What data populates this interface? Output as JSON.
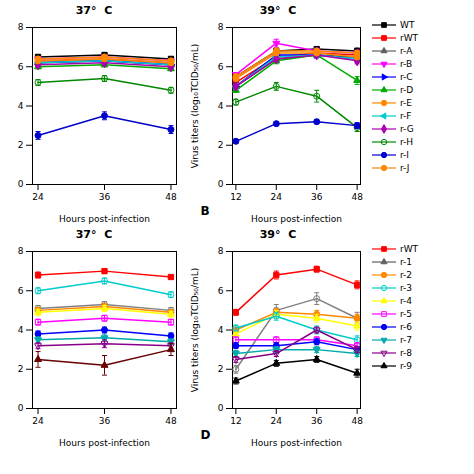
{
  "chart_data": [
    {
      "type": "line",
      "title": "37°  C",
      "x": [
        24,
        36,
        48
      ],
      "xlabel": "Hours post-infection",
      "xlim": [
        23,
        49
      ],
      "xticks": [
        24,
        36,
        48
      ],
      "ylim": [
        0,
        8
      ],
      "yticks": [
        0,
        2,
        4,
        6,
        8
      ],
      "series": [
        {
          "color": "#000000",
          "marker": "square",
          "values": [
            6.5,
            6.6,
            6.4
          ],
          "yerr": [
            0.1,
            0.1,
            0.1
          ]
        },
        {
          "color": "#ff0000",
          "marker": "square",
          "values": [
            6.3,
            6.4,
            6.2
          ],
          "yerr": [
            0.1,
            0.1,
            0.1
          ]
        },
        {
          "color": "#404040",
          "marker": "triangle-up",
          "values": [
            6.2,
            6.3,
            6.1
          ],
          "yerr": [
            0.1,
            0.1,
            0.1
          ]
        },
        {
          "color": "#ff00ff",
          "marker": "triangle-down",
          "values": [
            6.4,
            6.5,
            6.3
          ],
          "yerr": [
            0.1,
            0.1,
            0.1
          ]
        },
        {
          "color": "#0000ff",
          "marker": "triangle-right",
          "values": [
            6.2,
            6.3,
            6.1
          ],
          "yerr": [
            0.1,
            0.1,
            0.1
          ]
        },
        {
          "color": "#00aa00",
          "marker": "triangle-up",
          "values": [
            6.0,
            6.1,
            5.9
          ],
          "yerr": [
            0.1,
            0.1,
            0.1
          ]
        },
        {
          "color": "#ff8800",
          "marker": "circle",
          "values": [
            6.4,
            6.5,
            6.3
          ],
          "yerr": [
            0.1,
            0.1,
            0.1
          ]
        },
        {
          "color": "#00cccc",
          "marker": "triangle-left",
          "values": [
            6.2,
            6.3,
            6.1
          ],
          "yerr": [
            0.1,
            0.1,
            0.1
          ]
        },
        {
          "color": "#aa00aa",
          "marker": "diamond",
          "values": [
            6.1,
            6.2,
            6.0
          ],
          "yerr": [
            0.1,
            0.1,
            0.1
          ]
        },
        {
          "color": "#008800",
          "marker": "circle-open",
          "values": [
            5.2,
            5.4,
            4.8
          ],
          "yerr": [
            0.15,
            0.15,
            0.15
          ]
        },
        {
          "color": "#0000cc",
          "marker": "circle",
          "values": [
            2.5,
            3.5,
            2.8
          ],
          "yerr": [
            0.2,
            0.2,
            0.2
          ]
        },
        {
          "color": "#ff8800",
          "marker": "circle",
          "values": [
            6.3,
            6.4,
            6.2
          ],
          "yerr": [
            0.1,
            0.1,
            0.1
          ]
        }
      ]
    },
    {
      "type": "line",
      "title": "39°  C",
      "annotation": "B",
      "x": [
        12,
        24,
        36,
        48
      ],
      "xlabel": "Hours post-infection",
      "ylabel": "Virus titers (log₁₀TCID₅₀/mL)",
      "xlim": [
        11,
        49
      ],
      "xticks": [
        12,
        24,
        36,
        48
      ],
      "ylim": [
        0,
        8
      ],
      "yticks": [
        0,
        2,
        4,
        6,
        8
      ],
      "series": [
        {
          "color": "#000000",
          "marker": "square",
          "values": [
            5.5,
            6.8,
            6.9,
            6.8
          ],
          "yerr": [
            0.1,
            0.15,
            0.1,
            0.15
          ]
        },
        {
          "color": "#ff0000",
          "marker": "square",
          "values": [
            5.2,
            6.5,
            6.7,
            6.6
          ],
          "yerr": [
            0.1,
            0.15,
            0.1,
            0.15
          ]
        },
        {
          "color": "#404040",
          "marker": "triangle-up",
          "values": [
            5.0,
            6.4,
            6.6,
            6.5
          ],
          "yerr": [
            0.1,
            0.15,
            0.1,
            0.15
          ]
        },
        {
          "color": "#ff00ff",
          "marker": "triangle-down",
          "values": [
            5.6,
            7.2,
            6.8,
            6.7
          ],
          "yerr": [
            0.1,
            0.2,
            0.15,
            0.15
          ]
        },
        {
          "color": "#0000ff",
          "marker": "triangle-right",
          "values": [
            5.0,
            6.6,
            6.6,
            6.4
          ],
          "yerr": [
            0.1,
            0.15,
            0.1,
            0.15
          ]
        },
        {
          "color": "#00aa00",
          "marker": "triangle-up",
          "values": [
            4.8,
            6.3,
            6.6,
            5.3
          ],
          "yerr": [
            0.1,
            0.15,
            0.1,
            0.2
          ]
        },
        {
          "color": "#ff8800",
          "marker": "circle",
          "values": [
            5.5,
            6.8,
            6.8,
            6.7
          ],
          "yerr": [
            0.1,
            0.15,
            0.1,
            0.1
          ]
        },
        {
          "color": "#00cccc",
          "marker": "triangle-left",
          "values": [
            5.0,
            6.5,
            6.6,
            6.4
          ],
          "yerr": [
            0.1,
            0.15,
            0.1,
            0.15
          ]
        },
        {
          "color": "#aa00aa",
          "marker": "diamond",
          "values": [
            5.0,
            6.4,
            6.6,
            6.3
          ],
          "yerr": [
            0.1,
            0.15,
            0.1,
            0.15
          ]
        },
        {
          "color": "#008800",
          "marker": "circle-open",
          "values": [
            4.2,
            5.0,
            4.5,
            2.9
          ],
          "yerr": [
            0.15,
            0.2,
            0.3,
            0.2
          ]
        },
        {
          "color": "#0000cc",
          "marker": "circle",
          "values": [
            2.2,
            3.1,
            3.2,
            3.0
          ],
          "yerr": [
            0.1,
            0.1,
            0.1,
            0.15
          ]
        },
        {
          "color": "#ff8800",
          "marker": "circle",
          "values": [
            5.4,
            6.7,
            6.7,
            6.5
          ],
          "yerr": [
            0.1,
            0.1,
            0.1,
            0.1
          ]
        }
      ]
    },
    {
      "type": "legend",
      "series": [
        {
          "name": "WT",
          "color": "#000000",
          "marker": "square"
        },
        {
          "name": "rWT",
          "color": "#ff0000",
          "marker": "square"
        },
        {
          "name": "r-A",
          "color": "#606060",
          "marker": "triangle-up"
        },
        {
          "name": "r-B",
          "color": "#ff00ff",
          "marker": "triangle-down"
        },
        {
          "name": "r-C",
          "color": "#0000ff",
          "marker": "triangle-right"
        },
        {
          "name": "r-D",
          "color": "#00aa00",
          "marker": "triangle-up"
        },
        {
          "name": "r-E",
          "color": "#ff8800",
          "marker": "circle"
        },
        {
          "name": "r-F",
          "color": "#00cccc",
          "marker": "triangle-left"
        },
        {
          "name": "r-G",
          "color": "#aa00aa",
          "marker": "diamond"
        },
        {
          "name": "r-H",
          "color": "#008800",
          "marker": "circle-open"
        },
        {
          "name": "r-I",
          "color": "#0000cc",
          "marker": "circle"
        },
        {
          "name": "r-J",
          "color": "#ff8800",
          "marker": "circle"
        }
      ]
    },
    {
      "type": "line",
      "title": "37°  C",
      "x": [
        24,
        36,
        48
      ],
      "xlabel": "Hours post-infection",
      "xlim": [
        23,
        49
      ],
      "xticks": [
        24,
        36,
        48
      ],
      "ylim": [
        0,
        8
      ],
      "yticks": [
        0,
        2,
        4,
        6,
        8
      ],
      "series": [
        {
          "color": "#ff0000",
          "marker": "square",
          "values": [
            6.8,
            7.0,
            6.7
          ],
          "yerr": [
            0.15,
            0.1,
            0.1
          ]
        },
        {
          "color": "#00cccc",
          "marker": "circle-open",
          "values": [
            6.0,
            6.5,
            5.8
          ],
          "yerr": [
            0.15,
            0.15,
            0.15
          ]
        },
        {
          "color": "#808080",
          "marker": "circle-open",
          "values": [
            5.1,
            5.3,
            5.0
          ],
          "yerr": [
            0.15,
            0.15,
            0.15
          ]
        },
        {
          "color": "#ff8800",
          "marker": "circle",
          "values": [
            5.0,
            5.2,
            4.9
          ],
          "yerr": [
            0.15,
            0.15,
            0.15
          ]
        },
        {
          "color": "#ffff00",
          "marker": "triangle-up",
          "values": [
            4.9,
            5.1,
            4.8
          ],
          "yerr": [
            0.15,
            0.15,
            0.15
          ]
        },
        {
          "color": "#ff00ff",
          "marker": "square-open",
          "values": [
            4.4,
            4.6,
            4.4
          ],
          "yerr": [
            0.15,
            0.15,
            0.15
          ]
        },
        {
          "color": "#0000ff",
          "marker": "circle",
          "values": [
            3.8,
            4.0,
            3.7
          ],
          "yerr": [
            0.15,
            0.15,
            0.15
          ]
        },
        {
          "color": "#00aaaa",
          "marker": "triangle-down",
          "values": [
            3.5,
            3.6,
            3.4
          ],
          "yerr": [
            0.15,
            0.15,
            0.15
          ]
        },
        {
          "color": "#880088",
          "marker": "triangle-down-open",
          "values": [
            3.2,
            3.3,
            3.2
          ],
          "yerr": [
            0.15,
            0.2,
            0.15
          ]
        },
        {
          "color": "#660000",
          "marker": "triangle-up",
          "values": [
            2.5,
            2.2,
            3.0
          ],
          "yerr": [
            0.4,
            0.5,
            0.3
          ]
        }
      ]
    },
    {
      "type": "line",
      "title": "39°  C",
      "annotation": "D",
      "x": [
        12,
        24,
        36,
        48
      ],
      "xlabel": "Hours post-infection",
      "ylabel": "Virus titers (log₁₀TCID₅₀/mL)",
      "xlim": [
        11,
        49
      ],
      "xticks": [
        12,
        24,
        36,
        48
      ],
      "ylim": [
        0,
        8
      ],
      "yticks": [
        0,
        2,
        4,
        6,
        8
      ],
      "series": [
        {
          "color": "#ff0000",
          "marker": "square",
          "values": [
            4.9,
            6.8,
            7.1,
            6.3
          ],
          "yerr": [
            0.15,
            0.2,
            0.15,
            0.2
          ]
        },
        {
          "color": "#808080",
          "marker": "circle-open",
          "values": [
            2.0,
            5.0,
            5.6,
            4.6
          ],
          "yerr": [
            0.2,
            0.3,
            0.3,
            0.3
          ]
        },
        {
          "color": "#ff8800",
          "marker": "circle",
          "values": [
            4.0,
            4.9,
            4.8,
            4.6
          ],
          "yerr": [
            0.15,
            0.2,
            0.2,
            0.2
          ]
        },
        {
          "color": "#ffff00",
          "marker": "triangle-up",
          "values": [
            3.8,
            4.8,
            4.6,
            4.2
          ],
          "yerr": [
            0.15,
            0.2,
            0.2,
            0.2
          ]
        },
        {
          "color": "#00cccc",
          "marker": "circle-open",
          "values": [
            4.1,
            4.7,
            4.0,
            3.5
          ],
          "yerr": [
            0.15,
            0.2,
            0.2,
            0.2
          ]
        },
        {
          "color": "#ff00ff",
          "marker": "square-open",
          "values": [
            3.5,
            3.5,
            3.5,
            3.2
          ],
          "yerr": [
            0.15,
            0.15,
            0.15,
            0.15
          ]
        },
        {
          "color": "#0000ff",
          "marker": "circle",
          "values": [
            3.2,
            3.2,
            3.4,
            3.0
          ],
          "yerr": [
            0.15,
            0.15,
            0.15,
            0.15
          ]
        },
        {
          "color": "#00aaaa",
          "marker": "triangle-down",
          "values": [
            2.8,
            3.0,
            3.0,
            2.8
          ],
          "yerr": [
            0.15,
            0.15,
            0.15,
            0.15
          ]
        },
        {
          "color": "#880088",
          "marker": "triangle-down-open",
          "values": [
            2.5,
            2.8,
            4.0,
            3.0
          ],
          "yerr": [
            0.15,
            0.15,
            0.15,
            0.15
          ]
        },
        {
          "color": "#000000",
          "marker": "triangle-up",
          "values": [
            1.4,
            2.3,
            2.5,
            1.8
          ],
          "yerr": [
            0.15,
            0.15,
            0.15,
            0.2
          ]
        }
      ]
    },
    {
      "type": "legend",
      "series": [
        {
          "name": "rWT",
          "color": "#ff0000",
          "marker": "square"
        },
        {
          "name": "r-1",
          "color": "#606060",
          "marker": "triangle-up"
        },
        {
          "name": "r-2",
          "color": "#ff8800",
          "marker": "circle"
        },
        {
          "name": "r-3",
          "color": "#00cccc",
          "marker": "circle-open"
        },
        {
          "name": "r-4",
          "color": "#ffff00",
          "marker": "triangle-up"
        },
        {
          "name": "r-5",
          "color": "#ff00ff",
          "marker": "square-open"
        },
        {
          "name": "r-6",
          "color": "#0000ff",
          "marker": "circle"
        },
        {
          "name": "r-7",
          "color": "#00aaaa",
          "marker": "triangle-down"
        },
        {
          "name": "r-8",
          "color": "#880088",
          "marker": "triangle-down-open"
        },
        {
          "name": "r-9",
          "color": "#000000",
          "marker": "triangle-up"
        }
      ]
    }
  ]
}
